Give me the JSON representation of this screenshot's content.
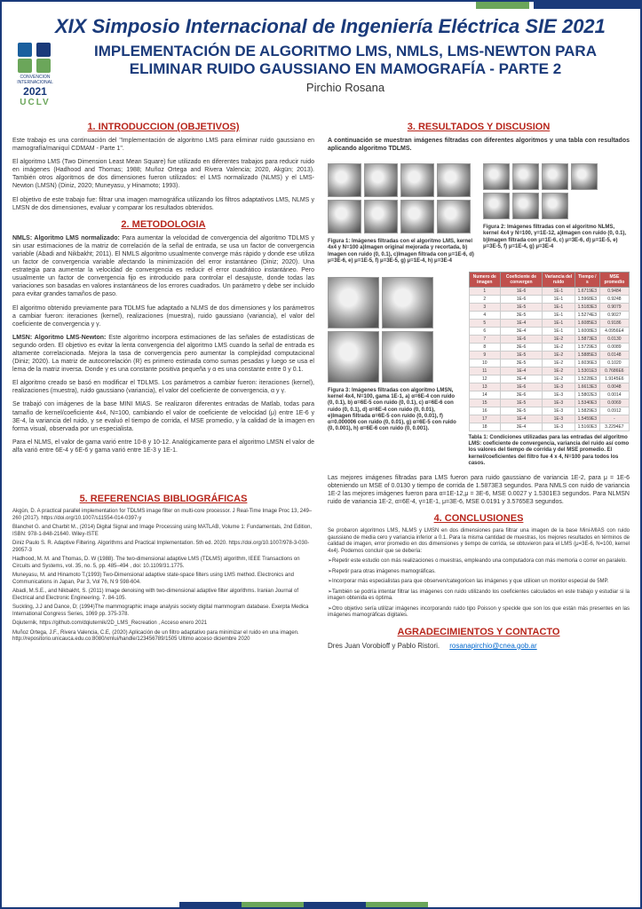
{
  "header": {
    "main_title": "XIX Simposio Internacional de Ingeniería Eléctrica SIE 2021",
    "sub_title": "IMPLEMENTACIÓN DE ALGORITMO LMS, NMLS, LMS-NEWTON PARA ELIMINAR RUIDO GAUSSIANO EN MAMOGRAFÍA - PARTE 2",
    "author": "Pirchio Rosana",
    "logo_conv": "CONVENCION INTERNACIONAL",
    "logo_year": "2021",
    "logo_uclv": "UCLV"
  },
  "colors": {
    "navy": "#1a3a7a",
    "green": "#6ba65a",
    "red_heading": "#b8261c",
    "table_header": "#c0504d"
  },
  "sections": {
    "intro_title": "1. INTRODUCCION (OBJETIVOS)",
    "intro_p1": "Este trabajo es una continuación del \"Implementación de algoritmo LMS para eliminar ruido gaussiano en mamografía/maniquí CDMAM - Parte 1\".",
    "intro_p2": "El algoritmo LMS (Two Dimension Least Mean Square) fue utilizado en diferentes trabajos para reducir ruido en imágenes (Hadhood and Thomas; 1988; Muñoz Ortega and Rivera Valencia; 2020, Akgün; 2013). También otros algoritmos de dos dimensiones fueron utilizados: el LMS normalizado (NLMS) y el LMS-Newton (LMSN) (Diniz, 2020; Muneyasu, y Hinamoto; 1993).",
    "intro_p3": "El objetivo de este trabajo fue: filtrar una imagen mamográfica utilizando los filtros adaptativos LMS, NLMS y LMSN de dos dimensiones, evaluar y comparar los resultados obtenidos.",
    "metod_title": "2. METODOLOGIA",
    "metod_p1_bold": "NMLS: Algoritmo LMS normalizado:",
    "metod_p1": " Para aumentar la velocidad de convergencia del algoritmo TDLMS y sin usar estimaciones de la matriz de correlación de la señal de entrada, se usa un factor de convergencia variable (Abadi and Nikbakht; 2011). El NMLS algoritmo usualmente converge más rápido y donde ese utiliza un factor de convergencia variable afectando la minimización del error instantáneo (Diniz; 2020). Una estrategia para aumentar la velocidad de convergencia es reducir el error cuadrático instantáneo. Pero usualmente un factor de convergencia fijo es introducido para controlar el desajuste, donde todas las variaciones son basadas en valores instantáneos de los errores cuadrados. Un parámetro γ debe ser incluido para evitar grandes tamaños de paso.",
    "metod_p2": "El algoritmo obtenido previamente para TDLMS fue adaptado a NLMS de dos dimensiones y los parámetros a cambiar fueron: iteraciones (kernel), realizaciones (muestra), ruido gaussiano (variancia), el valor del coeficiente de convergencia y γ.",
    "metod_p3_bold": "LMSN: Algoritmo LMS-Newton:",
    "metod_p3": " Este algoritmo incorpora estimaciones de las señales de estadísticas de segundo orden. El objetivo es evitar la lenta convergencia del algoritmo LMS cuando la señal de entrada es altamente correlacionada. Mejora la tasa de convergencia pero aumentar la complejidad computacional (Diniz; 2020). La matriz de autocorrelación (R) es primero estimada como sumas pesadas y luego se usa el lema de la matriz inversa. Donde γ es una constante positiva pequeña y α es una constante entre 0 y 0.1.",
    "metod_p4": "El algoritmo creado se basó en modificar el TDLMS. Los parámetros a cambiar fueron: iteraciones (kernel), realizaciones (muestra), ruido gaussiano (variancia), el valor del coeficiente de convergencia, α y γ.",
    "metod_p5": "Se trabajó con imágenes de la base MINI MIAS. Se realizaron diferentes entradas de Matlab, todas para tamaño de kernel/coeficiente 4x4, N=100, cambiando el valor de coeficiente de velocidad (μ) entre 1E-6 y 3E-4, la variancia del ruido, y se evaluó el tiempo de corrida, el MSE promedio, y la calidad de la imagen en forma visual, observada por un especialista.",
    "metod_p6": "Para el NLMS, el valor de gama varió entre 10-8 y 10-12. Analógicamente para el algoritmo LMSN el valor de alfa varió entre 6E-4 y 6E-6 y gama varió entre 1E-3 y 1E-1.",
    "ref_title": "5. REFERENCIAS BIBLIOGRÁFICAS",
    "results_title": "3. RESULTADOS Y DISCUSION",
    "results_intro": "A continuación se muestran imágenes filtradas con diferentes algoritmos y una tabla con resultados aplicando algoritmo TDLMS.",
    "fig1_caption": "Figura 1: Imágenes filtradas con el algoritmo LMS, kernel 4x4 y N=100 a)Imagen original mejorada y recortada, b) Imagen con ruido (0, 0.1), c)Imagen filtrada con μ=1E-6, d) μ=3E-6, e) μ=1E-5, f) μ=3E-5, g) μ=1E-4, h) μ=3E-4",
    "fig2_caption": "Figura 2: Imágenes filtradas con el algoritmo NLMS, kernel 4x4 y N=100, γ=1E-12, a)Imagen con ruido (0, 0.1), b)Imagen filtrada con μ=1E-6, c) μ=3E-6, d) μ=1E-5, e) μ=3E-5, f) μ=1E-4, g) μ=3E-4",
    "fig3_caption": "Figura 3: Imágenes filtradas con algoritmo LMSN, kernel 4x4, N=100, gama 1E-1, a) α=6E-4 con ruido (0, 0.1), b) α=6E-5 con ruido (0, 0.1), c) α=6E-6 con ruido (0, 0.1), d) α=6E-4 con ruido (0, 0.01), e)Imagen filtrada α=6E-5 con ruido (0, 0.01), f) α=0.000006 con ruido (0, 0.01), g) α=6E-5 con ruido (0, 0.001), h) α=6E-6 con ruido (0, 0.001).",
    "table1_caption": "Tabla 1: Condiciones utilizadas para las entradas del algoritmo LMS: coeficiente de convergencia, variancia del ruido así como los valores del tiempo de corrida y del MSE promedio. El kernel/coeficientes del filtro fue 4 x 4, N=100 para todos los casos.",
    "results_p1": "Las mejores imágenes filtradas para LMS fueron para ruido gaussiano de variancia 1E-2, para μ = 1E-6 obteniendo un MSE of 0.0130 y tiempo de corrida de 1.5873E3 segundos. Para NMLS con ruido de variancia 1E-2 las mejores imágenes fueron para α=1E-12,μ = 3E-6, MSE 0.0027 y 1.5301E3 segundos. Para NLMSN ruido de variancia 1E-2, α=6E-4, γ=1E-1, μ=3E-6, MSE 0.0191 y 3.5765E3 segundos.",
    "concl_title": "4. CONCLUSIONES",
    "concl_p1": "Se probaron algoritmos LMS, NLMS y LMSN en dos dimensiones para filtrar una imagen de la base Mini-MIAS con ruido gaussiano de media cero y variancia inferior a 0.1. Para la misma cantidad de muestras, los mejores resultados en términos de calidad de imagen, error promedio en dos dimensiones y tiempo de corrida, se obtuvieron para el LMS (μ=3E-6, N=100, kernel 4x4). Podemos concluir que se debería:",
    "concl_b1": "➢Repetir este estudio con más realizaciones o muestras, empleando una computadora con más memoria o correr en paralelo.",
    "concl_b2": "➢Repetir para otras imágenes mamográficas.",
    "concl_b3": "➢Incorporar más especialistas para que observen/categoricen las imágenes y que utilicen un monitor especial de 5MP.",
    "concl_b4": "➢También se podría intentar filtrar las imágenes con ruido utilizando los coeficientes calculados en este trabajo y estudiar si la imagen obtenida es óptima.",
    "concl_b5": "➢Otro objetivo sería utilizar imágenes incorporando ruido tipo Poisson y speckle que son los que están más presentes en las imágenes mamográficas digitales.",
    "ack_title": "AGRADECIMIENTOS Y CONTACTO",
    "ack_text": "Dres Juan Vorobioff y Pablo Ristori.",
    "ack_email": "rosanapirchio@cnea.gob.ar"
  },
  "refs": [
    "Akgün, D. A practical parallel implementation for TDLMS image filter on multi-core processor. J Real-Time Image Proc 13, 249–260 (2017). https://doi.org/10.1007/s11554-014-0397-y",
    "Blanchet G. and Charbit M., (2014) Digital Signal and Image Processing using MATLAB, Volume 1: Fundamentals, 2nd Edition, ISBN: 978-1-848-21640. Wiley-ISTE",
    "Diniz Paulo S. R. Adaptive Filtering. Algorithms and Practical Implementation. 5th ed. 2020. https://doi.org/10.1007/978-3-030-29057-3",
    "Hadhood, M. M. and Thomas, D. W (1988). The two-dimensional adaptive LMS (TDLMS) algorithm, IEEE Transactions on Circuits and Systems, vol. 35, no. 5, pp. 485–494 , doi: 10.1109/31.1775.",
    "Muneyasu, M. and Hinamoto T.(1993) Two-Dimensional adaptive state-space filters using LMS method. Electronics and Communications in Japan, Par 3, Vol 76, N 9 598-604.",
    "Abadi, M.S.E., and Nikbakht, S. (2011) Image denoising with two-dimensional adaptive filter algorithms. Iranian Journal of Electrical and Electronic Engineering. 7. 84-105.",
    "Suckling, J.J and Dance, D; (1994)The mammographic image analysis society digital mammogram database. Exerpta Medica International Congress Series, 1069 pp. 375-378."
  ],
  "ref_links": {
    "dqiuternik": "Dqiuternik, https://github.com/dqiuternik/2D_LMS_Recreation , Acceso enero 2021",
    "munoz": "Muñoz Ortega, J.F., Rivera Valencia, C.E, (2020) Aplicación de un filtro adaptativo para minimizar el ruido en una imagen. http://repositorio.unicauca.edu.co:8080/xmlui/handle/123456789/1505 Ultimo acceso diciembre 2020"
  },
  "table": {
    "headers": [
      "Numero de imagen",
      "Coeficiente de convergen",
      "Variancia del ruido",
      "Tiempo / s",
      "MSE promedio"
    ],
    "rows": [
      [
        "1",
        "1E-6",
        "1E-1",
        "1.6719E3",
        "0.9484"
      ],
      [
        "2",
        "1E-6",
        "1E-1",
        "1.5968E3",
        "0.9248"
      ],
      [
        "3",
        "1E-5",
        "1E-1",
        "1.5183E3",
        "0.9079"
      ],
      [
        "4",
        "3E-5",
        "1E-1",
        "1.5274E3",
        "0.9027"
      ],
      [
        "5",
        "1E-4",
        "1E-1",
        "1.6085E3",
        "0.9186"
      ],
      [
        "6",
        "3E-4",
        "1E-1",
        "1.6008E3",
        "4.0956E4"
      ],
      [
        "7",
        "1E-6",
        "1E-2",
        "1.5873E3",
        "0.0130"
      ],
      [
        "8",
        "3E-6",
        "1E-2",
        "1.5729E3",
        "0.0089"
      ],
      [
        "9",
        "1E-5",
        "1E-2",
        "1.5885E3",
        "0.0148"
      ],
      [
        "10",
        "3E-5",
        "1E-2",
        "1.6036E3",
        "0.1020"
      ],
      [
        "11",
        "1E-4",
        "1E-2",
        "1.5301E3",
        "0.7686E6"
      ],
      [
        "12",
        "3E-4",
        "1E-2",
        "1.5228E3",
        "1.9145E6"
      ],
      [
        "13",
        "1E-6",
        "1E-3",
        "1.6613E3",
        "0.0048"
      ],
      [
        "14",
        "3E-6",
        "1E-3",
        "1.5802E3",
        "0.0014"
      ],
      [
        "15",
        "1E-5",
        "1E-3",
        "1.5340E3",
        "0.0069"
      ],
      [
        "16",
        "3E-5",
        "1E-3",
        "1.5829E3",
        "0.0912"
      ],
      [
        "17",
        "1E-4",
        "1E-3",
        "1.5459E3",
        "-"
      ],
      [
        "18",
        "3E-4",
        "1E-3",
        "1.5160E3",
        "3.2294E7"
      ]
    ]
  }
}
